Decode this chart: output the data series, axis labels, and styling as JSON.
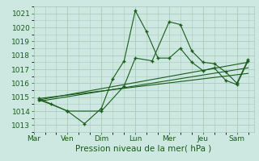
{
  "background_color": "#cce8e0",
  "grid_color": "#aaccbb",
  "line_color": "#1a5c1a",
  "marker_color": "#1a5c1a",
  "xlabel": "Pression niveau de la mer( hPa )",
  "ylim": [
    1012.5,
    1021.5
  ],
  "yticks": [
    1013,
    1014,
    1015,
    1016,
    1017,
    1018,
    1019,
    1020,
    1021
  ],
  "day_labels": [
    "Mar",
    "Ven",
    "Dim",
    "Lun",
    "Mer",
    "Jeu",
    "Sam"
  ],
  "day_positions": [
    0,
    1,
    2,
    3,
    4,
    5,
    6
  ],
  "xlim": [
    0,
    6.5
  ],
  "series_jagged1": {
    "x": [
      0.15,
      0.5,
      1.0,
      1.5,
      2.0,
      2.33,
      2.67,
      3.0,
      3.33,
      3.67,
      4.0,
      4.33,
      4.67,
      5.0,
      5.33,
      5.67,
      6.0,
      6.33
    ],
    "y": [
      1014.8,
      1014.5,
      1014.0,
      1013.1,
      1014.2,
      1016.3,
      1017.6,
      1021.2,
      1019.7,
      1017.8,
      1017.8,
      1018.5,
      1017.5,
      1016.9,
      1017.1,
      1016.2,
      1015.9,
      1017.6
    ]
  },
  "series_jagged2": {
    "x": [
      0.15,
      1.0,
      2.0,
      2.67,
      3.0,
      3.5,
      4.0,
      4.33,
      4.67,
      5.0,
      5.33,
      5.67,
      6.0,
      6.33
    ],
    "y": [
      1014.9,
      1014.0,
      1014.0,
      1015.8,
      1017.8,
      1017.6,
      1020.4,
      1020.2,
      1018.3,
      1017.5,
      1017.4,
      1016.8,
      1016.0,
      1017.7
    ]
  },
  "trend1": {
    "x": [
      0.15,
      6.33
    ],
    "y": [
      1014.7,
      1017.1
    ]
  },
  "trend2": {
    "x": [
      0.15,
      6.33
    ],
    "y": [
      1014.8,
      1017.5
    ]
  },
  "trend3": {
    "x": [
      0.15,
      6.33
    ],
    "y": [
      1014.9,
      1016.7
    ]
  },
  "fontsize_xlabel": 7.5,
  "fontsize_ticks": 6.5
}
